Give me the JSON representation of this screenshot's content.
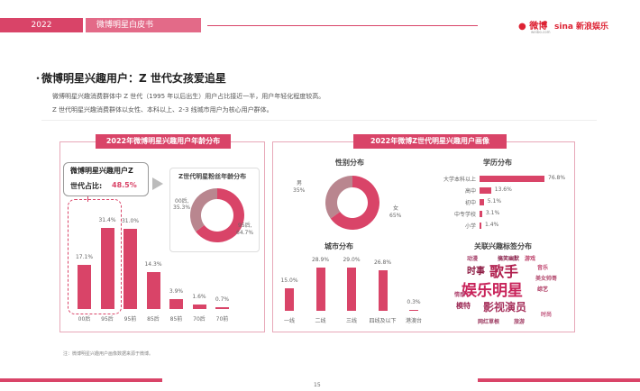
{
  "header": {
    "year": "2022",
    "title": "微博明星白皮书",
    "logo_weibo": "微博",
    "logo_weibo_sub": "weibo.com",
    "logo_sina": "sina 新浪娱乐"
  },
  "section": {
    "title": "Z 世代女孩爱追星",
    "bullet": "・",
    "title_full": "微博明星兴趣用户：Z 世代女孩爱追星"
  },
  "desc": {
    "line1": "微博明星兴趣消费群体中 Z 世代（1995 年以后出生）用户占比接近一半，用户年轻化程度较高。",
    "line2": "Z 世代明星兴趣消费群体以女性、本科以上、2-3 线城市用户为核心用户群体。"
  },
  "left_panel": {
    "tag": "2022年微博明星兴趣用户年龄分布",
    "callout_label1": "微博明星兴趣用户Z",
    "callout_label2": "世代占比:",
    "callout_value": "48.5%",
    "donut_title": "Z世代明星粉丝年龄分布",
    "donut": {
      "a_label": "00后,",
      "a_value": "35.3%",
      "b_label": "95后,",
      "b_value": "64.7%"
    }
  },
  "right_panel": {
    "tag": "2022年微博Z世代明星兴趣用户画像",
    "gender_title": "性别分布",
    "gender": {
      "male_label": "男",
      "male_value": "35%",
      "female_label": "女",
      "female_value": "65%"
    },
    "edu_title": "学历分布",
    "city_title": "城市分布",
    "tag_title": "关联兴趣标签分布",
    "cloud": {
      "w1": "娱乐明星",
      "w2": "歌手",
      "w3": "影视演员",
      "w4": "时事",
      "w5": "模特",
      "w6": "美女帅哥",
      "w7": "网红草根",
      "w8": "音乐",
      "w9": "动漫",
      "w10": "游戏",
      "w11": "综艺",
      "w12": "时尚",
      "w13": "搞笑幽默",
      "w14": "情感",
      "w15": "旅游"
    }
  },
  "note": "注：微博明星兴趣用户画像数据来源于微博。",
  "page_number": "15",
  "chart_data": [
    {
      "type": "bar",
      "title": "2022年微博明星兴趣用户年龄分布",
      "categories": [
        "00后",
        "95后",
        "95前",
        "85后",
        "85前",
        "70后",
        "70前"
      ],
      "values": [
        17.1,
        31.4,
        31.0,
        14.3,
        3.9,
        1.6,
        0.7
      ],
      "labels": [
        "17.1%",
        "31.4%",
        "31.0%",
        "14.3%",
        "3.9%",
        "1.6%",
        "0.7%"
      ]
    },
    {
      "type": "pie",
      "title": "Z世代明星粉丝年龄分布",
      "categories": [
        "00后",
        "95后"
      ],
      "values": [
        35.3,
        64.7
      ]
    },
    {
      "type": "pie",
      "title": "性别分布",
      "categories": [
        "男",
        "女"
      ],
      "values": [
        35,
        65
      ]
    },
    {
      "type": "bar",
      "title": "学历分布",
      "categories": [
        "大学本科以上",
        "高中",
        "初中",
        "中专学校",
        "小学"
      ],
      "values": [
        76.8,
        13.6,
        5.1,
        3.1,
        1.4
      ],
      "labels": [
        "76.8%",
        "13.6%",
        "5.1%",
        "3.1%",
        "1.4%"
      ]
    },
    {
      "type": "bar",
      "title": "城市分布",
      "categories": [
        "一线",
        "二线",
        "三线",
        "四线及以下",
        "港澳台"
      ],
      "values": [
        15.0,
        28.9,
        29.0,
        26.8,
        0.3
      ],
      "labels": [
        "15.0%",
        "28.9%",
        "29.0%",
        "26.8%",
        "0.3%"
      ]
    }
  ]
}
